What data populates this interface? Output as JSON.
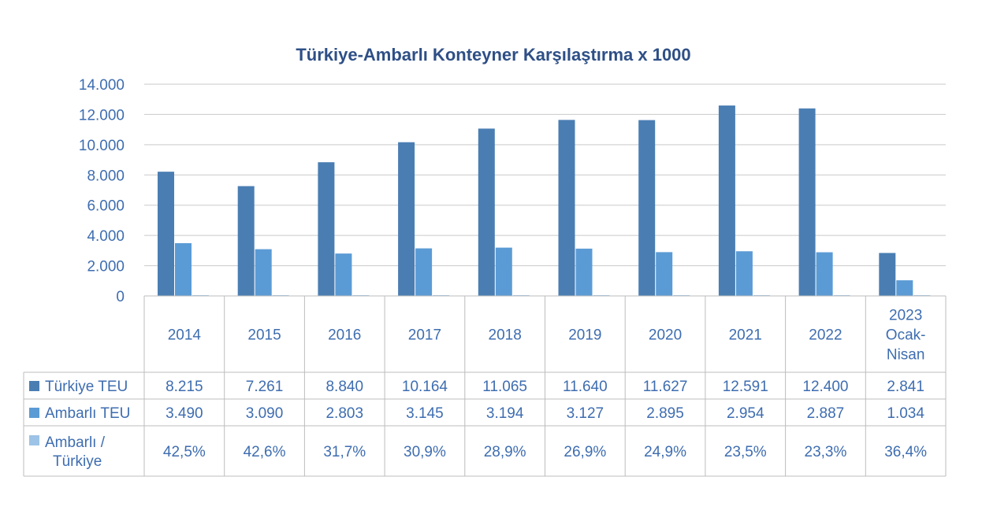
{
  "chart_data": {
    "type": "bar",
    "title": "Türkiye-Ambarlı Konteyner Karşılaştırma x 1000",
    "categories": [
      [
        "2014"
      ],
      [
        "2015"
      ],
      [
        "2016"
      ],
      [
        "2017"
      ],
      [
        "2018"
      ],
      [
        "2019"
      ],
      [
        "2020"
      ],
      [
        "2021"
      ],
      [
        "2022"
      ],
      [
        "2023",
        "Ocak-",
        "Nisan"
      ]
    ],
    "ylim": [
      0,
      14000
    ],
    "y_ticks": [
      "0",
      "2.000",
      "4.000",
      "6.000",
      "8.000",
      "10.000",
      "12.000",
      "14.000"
    ],
    "grid": true,
    "legend": "data-table",
    "series": [
      {
        "name": "Türkiye TEU",
        "legend_label": [
          "Türkiye TEU"
        ],
        "color": "#4a7eb3",
        "values": [
          8215,
          7261,
          8840,
          10164,
          11065,
          11640,
          11627,
          12591,
          12400,
          2841
        ],
        "labels": [
          "8.215",
          "7.261",
          "8.840",
          "10.164",
          "11.065",
          "11.640",
          "11.627",
          "12.591",
          "12.400",
          "2.841"
        ]
      },
      {
        "name": "Ambarlı TEU",
        "legend_label": [
          "Ambarlı TEU"
        ],
        "color": "#5b9bd5",
        "values": [
          3490,
          3090,
          2803,
          3145,
          3194,
          3127,
          2895,
          2954,
          2887,
          1034
        ],
        "labels": [
          "3.490",
          "3.090",
          "2.803",
          "3.145",
          "3.194",
          "3.127",
          "2.895",
          "2.954",
          "2.887",
          "1.034"
        ]
      },
      {
        "name": "Ambarlı / Türkiye",
        "legend_label": [
          "Ambarlı /",
          "Türkiye"
        ],
        "color": "#9dc3e6",
        "values": [
          42.5,
          42.6,
          31.7,
          30.9,
          28.9,
          26.9,
          24.9,
          23.5,
          23.3,
          36.4
        ],
        "labels": [
          "42,5%",
          "42,6%",
          "31,7%",
          "30,9%",
          "28,9%",
          "26,9%",
          "24,9%",
          "23,5%",
          "23,3%",
          "36,4%"
        ]
      }
    ]
  }
}
